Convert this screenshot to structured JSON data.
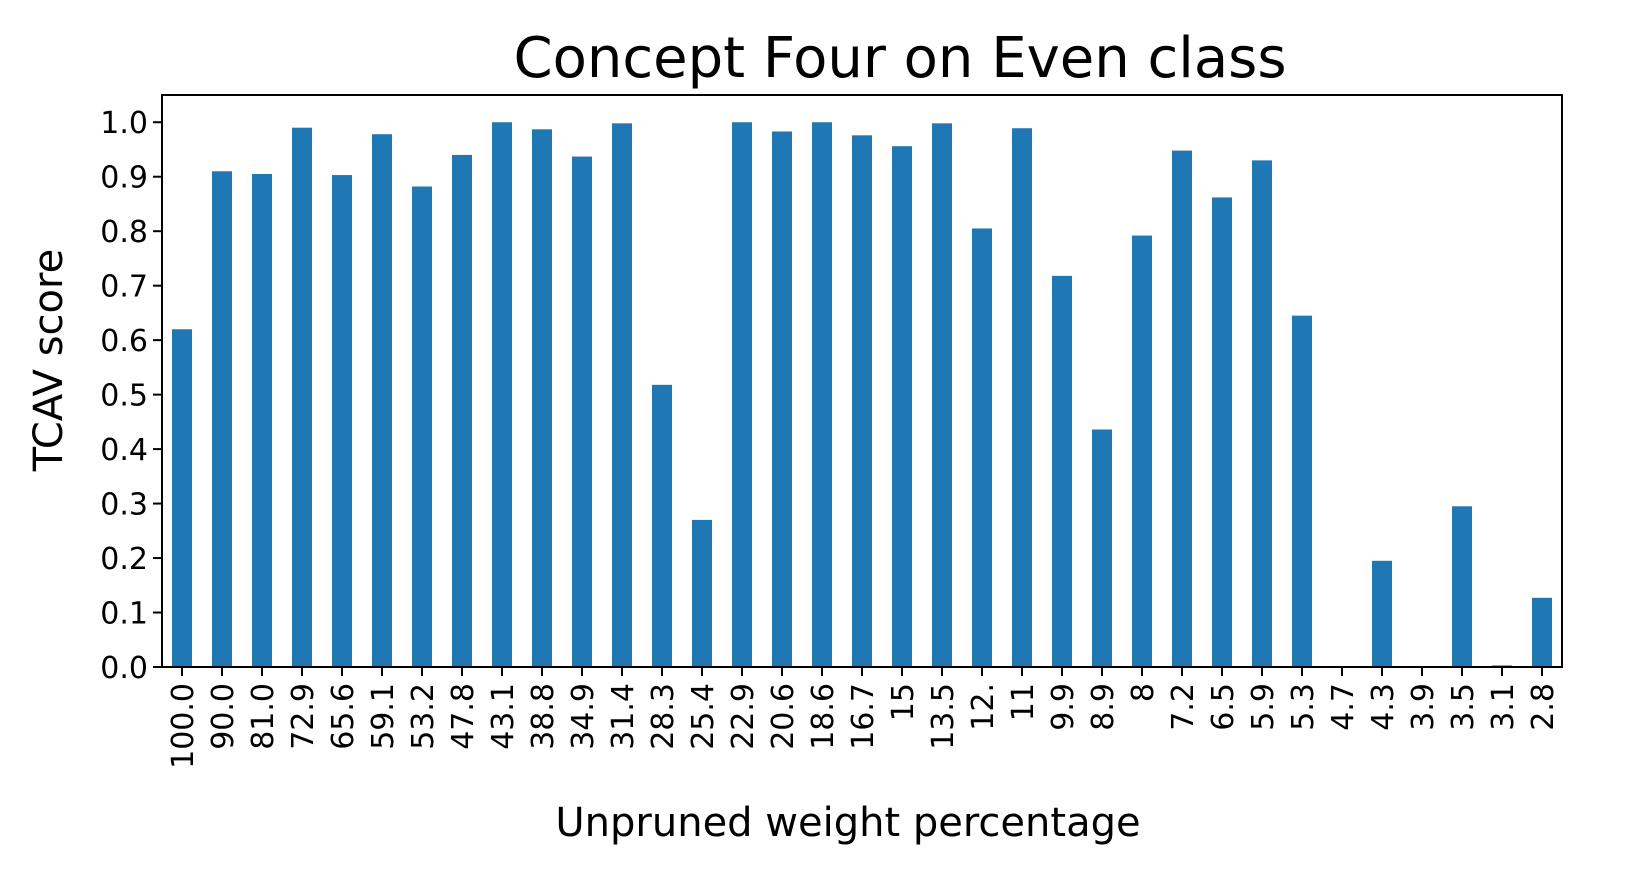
{
  "chart_data": {
    "type": "bar",
    "title": "Concept Four on Even class",
    "xlabel": "Unpruned weight percentage",
    "ylabel": "TCAV score",
    "ylim": [
      0,
      1.05
    ],
    "yticks": [
      "0.0",
      "0.1",
      "0.2",
      "0.3",
      "0.4",
      "0.5",
      "0.6",
      "0.7",
      "0.8",
      "0.9",
      "1.0"
    ],
    "grid": false,
    "legend": "none",
    "bar_color": "#1f77b4",
    "categories": [
      "100.0",
      "90.0",
      "81.0",
      "72.9",
      "65.6",
      "59.1",
      "53.2",
      "47.8",
      "43.1",
      "38.8",
      "34.9",
      "31.4",
      "28.3",
      "25.4",
      "22.9",
      "20.6",
      "18.6",
      "16.7",
      "15",
      "13.5",
      "12.",
      "11",
      "9.9",
      "8.9",
      "8",
      "7.2",
      "6.5",
      "5.9",
      "5.3",
      "4.7",
      "4.3",
      "3.9",
      "3.5",
      "3.1",
      "2.8"
    ],
    "values": [
      0.62,
      0.91,
      0.905,
      0.99,
      0.903,
      0.978,
      0.882,
      0.94,
      1.0,
      0.987,
      0.937,
      0.998,
      0.518,
      0.27,
      1.0,
      0.983,
      1.0,
      0.976,
      0.956,
      0.998,
      0.805,
      0.989,
      0.718,
      0.436,
      0.792,
      0.948,
      0.862,
      0.93,
      0.645,
      0.0,
      0.195,
      0.0,
      0.295,
      0.003,
      0.127
    ]
  }
}
